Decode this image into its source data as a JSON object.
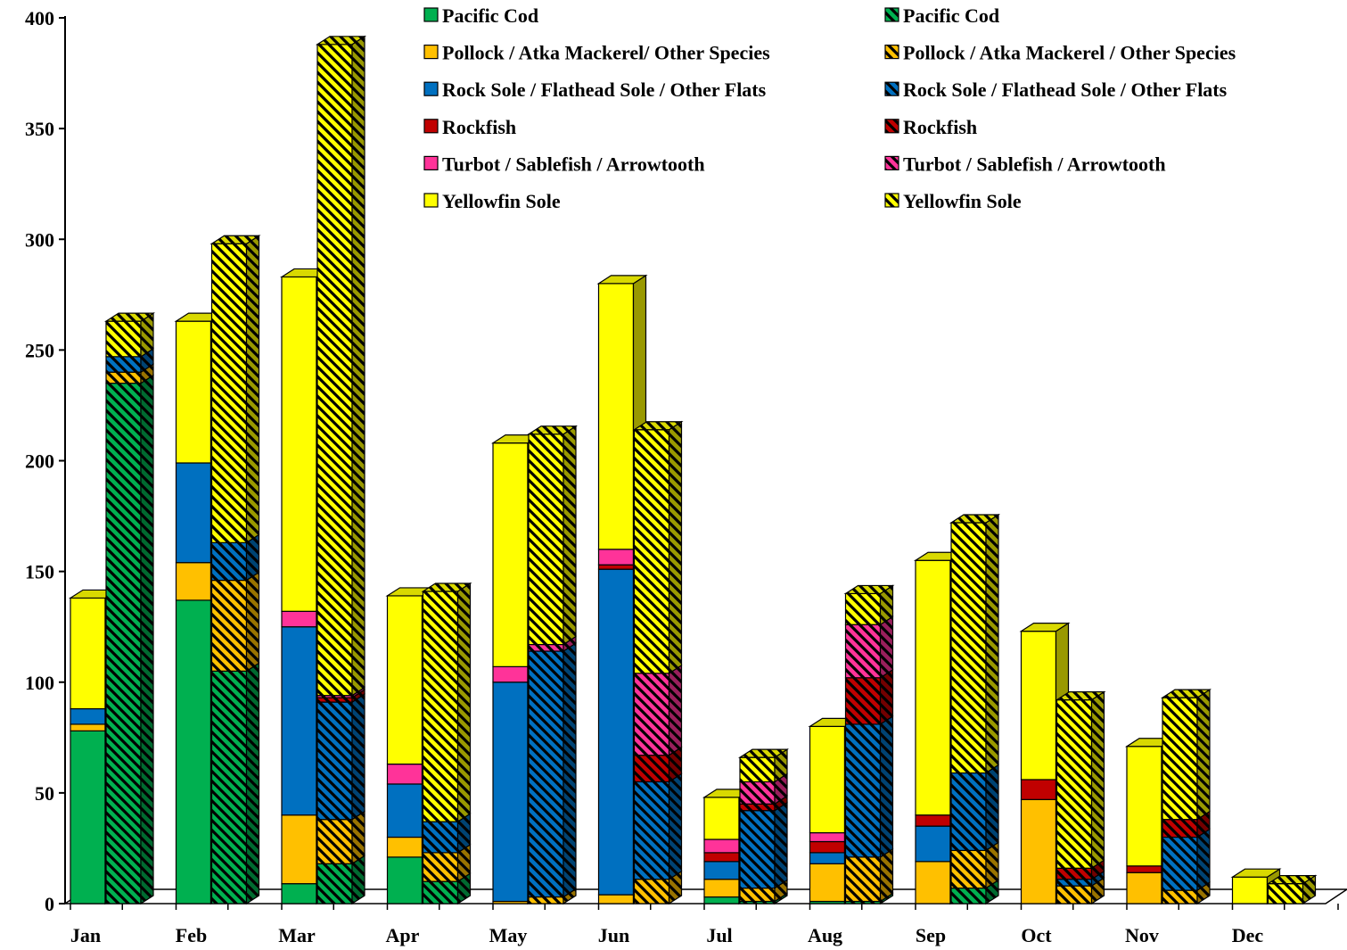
{
  "chart_data": {
    "type": "bar",
    "stacked": true,
    "categories": [
      "Jan",
      "Feb",
      "Mar",
      "Apr",
      "May",
      "Jun",
      "Jul",
      "Aug",
      "Sep",
      "Oct",
      "Nov",
      "Dec"
    ],
    "ylim": [
      0,
      400
    ],
    "yticks": [
      0,
      50,
      100,
      150,
      200,
      250,
      300,
      350,
      400
    ],
    "grid": false,
    "legend_position": "top-right",
    "bar_groups": [
      "solid",
      "hatched"
    ],
    "series": [
      {
        "name": "Pacific Cod",
        "color": "#00b050",
        "group": "solid",
        "values": [
          78,
          137,
          9,
          21,
          0,
          0,
          3,
          1,
          0,
          0,
          0,
          0
        ]
      },
      {
        "name": "Pollock / Atka Mackerel/ Other Species",
        "color": "#ffc000",
        "group": "solid",
        "values": [
          3,
          17,
          31,
          9,
          1,
          4,
          8,
          17,
          19,
          47,
          14,
          0
        ]
      },
      {
        "name": "Rock Sole / Flathead Sole / Other Flats",
        "color": "#0070c0",
        "group": "solid",
        "values": [
          7,
          45,
          85,
          24,
          99,
          147,
          8,
          5,
          16,
          0,
          0,
          0
        ]
      },
      {
        "name": "Rockfish",
        "color": "#c00000",
        "group": "solid",
        "values": [
          0,
          0,
          0,
          0,
          0,
          2,
          4,
          5,
          5,
          9,
          3,
          0
        ]
      },
      {
        "name": "Turbot / Sablefish / Arrowtooth",
        "color": "#ff3399",
        "group": "solid",
        "values": [
          0,
          0,
          7,
          9,
          7,
          7,
          6,
          4,
          0,
          0,
          0,
          0
        ]
      },
      {
        "name": "Yellowfin Sole",
        "color": "#ffff00",
        "group": "solid",
        "values": [
          50,
          64,
          151,
          76,
          101,
          120,
          19,
          48,
          115,
          67,
          54,
          12
        ]
      },
      {
        "name": "Pacific Cod",
        "color": "#00b050",
        "group": "hatched",
        "values": [
          235,
          105,
          18,
          10,
          0,
          0,
          1,
          1,
          7,
          0,
          0,
          0
        ]
      },
      {
        "name": "Pollock / Atka Mackerel / Other Species",
        "color": "#ffc000",
        "group": "hatched",
        "values": [
          5,
          41,
          20,
          13,
          3,
          11,
          6,
          20,
          17,
          8,
          6,
          0
        ]
      },
      {
        "name": "Rock Sole / Flathead Sole / Other Flats",
        "color": "#0070c0",
        "group": "hatched",
        "values": [
          7,
          17,
          53,
          14,
          111,
          44,
          35,
          60,
          35,
          3,
          24,
          0
        ]
      },
      {
        "name": "Rockfish",
        "color": "#c00000",
        "group": "hatched",
        "values": [
          0,
          0,
          2,
          0,
          0,
          12,
          3,
          21,
          0,
          5,
          8,
          0
        ]
      },
      {
        "name": "Turbot / Sablefish / Arrowtooth",
        "color": "#ff3399",
        "group": "hatched",
        "values": [
          0,
          0,
          1,
          0,
          3,
          37,
          10,
          24,
          0,
          0,
          0,
          0
        ]
      },
      {
        "name": "Yellowfin Sole",
        "color": "#ffff00",
        "group": "hatched",
        "values": [
          16,
          135,
          294,
          104,
          95,
          110,
          11,
          14,
          113,
          76,
          55,
          9
        ]
      }
    ]
  }
}
